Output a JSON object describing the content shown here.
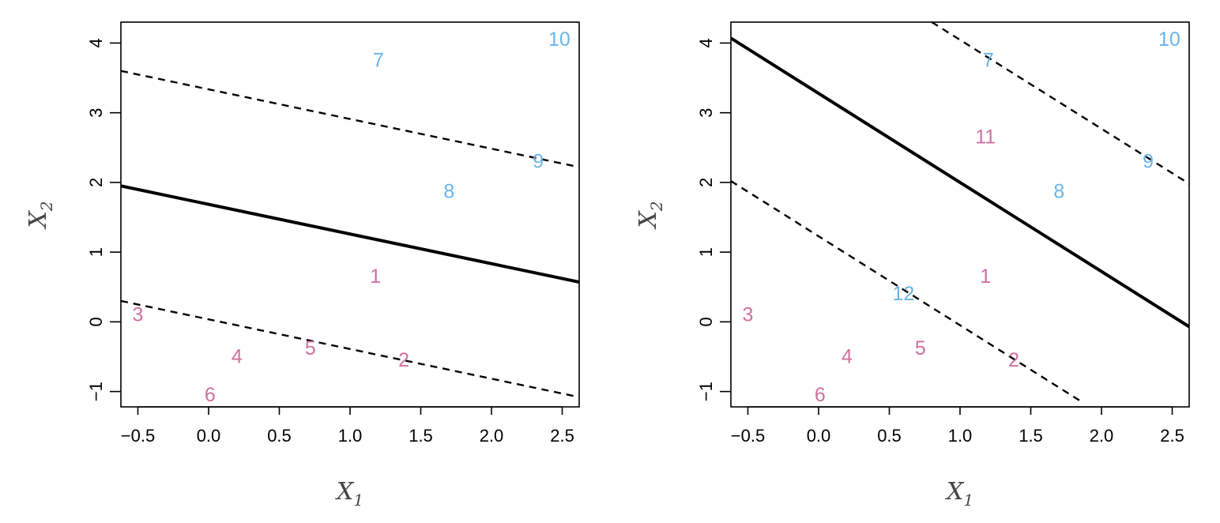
{
  "colors": {
    "class_a": "#d070a0",
    "class_b": "#6ab4e8",
    "line": "#000000"
  },
  "chart_data": [
    {
      "type": "scatter",
      "title": "",
      "xlabel": "X",
      "xlabel_sub": "1",
      "ylabel": "X",
      "ylabel_sub": "2",
      "xlim": [
        -0.62,
        2.62
      ],
      "ylim": [
        -1.22,
        4.3
      ],
      "xticks": [
        -0.5,
        0.0,
        0.5,
        1.0,
        1.5,
        2.0,
        2.5
      ],
      "xtick_labels": [
        "−0.5",
        "0.0",
        "0.5",
        "1.0",
        "1.5",
        "2.0",
        "2.5"
      ],
      "yticks": [
        -1,
        0,
        1,
        2,
        3,
        4
      ],
      "ytick_labels": [
        "−1",
        "0",
        "1",
        "2",
        "3",
        "4"
      ],
      "points": [
        {
          "label": "1",
          "x": 1.18,
          "y": 0.65,
          "class": "class_a"
        },
        {
          "label": "2",
          "x": 1.38,
          "y": -0.55,
          "class": "class_a"
        },
        {
          "label": "3",
          "x": -0.5,
          "y": 0.1,
          "class": "class_a"
        },
        {
          "label": "4",
          "x": 0.2,
          "y": -0.5,
          "class": "class_a"
        },
        {
          "label": "5",
          "x": 0.72,
          "y": -0.38,
          "class": "class_a"
        },
        {
          "label": "6",
          "x": 0.01,
          "y": -1.05,
          "class": "class_a"
        },
        {
          "label": "7",
          "x": 1.2,
          "y": 3.75,
          "class": "class_b"
        },
        {
          "label": "8",
          "x": 1.7,
          "y": 1.87,
          "class": "class_b"
        },
        {
          "label": "9",
          "x": 2.33,
          "y": 2.3,
          "class": "class_b"
        },
        {
          "label": "10",
          "x": 2.48,
          "y": 4.05,
          "class": "class_b"
        }
      ],
      "lines": [
        {
          "style": "solid",
          "x": [
            -0.62,
            2.62
          ],
          "y": [
            1.95,
            0.57
          ]
        },
        {
          "style": "dashed",
          "x": [
            -0.62,
            2.62
          ],
          "y": [
            3.6,
            2.22
          ]
        },
        {
          "style": "dashed",
          "x": [
            -0.62,
            2.62
          ],
          "y": [
            0.3,
            -1.08
          ]
        }
      ]
    },
    {
      "type": "scatter",
      "title": "",
      "xlabel": "X",
      "xlabel_sub": "1",
      "ylabel": "X",
      "ylabel_sub": "2",
      "xlim": [
        -0.62,
        2.62
      ],
      "ylim": [
        -1.22,
        4.3
      ],
      "xticks": [
        -0.5,
        0.0,
        0.5,
        1.0,
        1.5,
        2.0,
        2.5
      ],
      "xtick_labels": [
        "−0.5",
        "0.0",
        "0.5",
        "1.0",
        "1.5",
        "2.0",
        "2.5"
      ],
      "yticks": [
        -1,
        0,
        1,
        2,
        3,
        4
      ],
      "ytick_labels": [
        "−1",
        "0",
        "1",
        "2",
        "3",
        "4"
      ],
      "points": [
        {
          "label": "1",
          "x": 1.18,
          "y": 0.65,
          "class": "class_a"
        },
        {
          "label": "2",
          "x": 1.38,
          "y": -0.55,
          "class": "class_a"
        },
        {
          "label": "3",
          "x": -0.5,
          "y": 0.1,
          "class": "class_a"
        },
        {
          "label": "4",
          "x": 0.2,
          "y": -0.5,
          "class": "class_a"
        },
        {
          "label": "5",
          "x": 0.72,
          "y": -0.38,
          "class": "class_a"
        },
        {
          "label": "6",
          "x": 0.01,
          "y": -1.05,
          "class": "class_a"
        },
        {
          "label": "7",
          "x": 1.2,
          "y": 3.75,
          "class": "class_b"
        },
        {
          "label": "8",
          "x": 1.7,
          "y": 1.87,
          "class": "class_b"
        },
        {
          "label": "9",
          "x": 2.33,
          "y": 2.3,
          "class": "class_b"
        },
        {
          "label": "10",
          "x": 2.48,
          "y": 4.05,
          "class": "class_b"
        },
        {
          "label": "11",
          "x": 1.18,
          "y": 2.65,
          "class": "class_a"
        },
        {
          "label": "12",
          "x": 0.6,
          "y": 0.4,
          "class": "class_b"
        }
      ],
      "lines": [
        {
          "style": "solid",
          "x": [
            -0.62,
            2.62
          ],
          "y": [
            4.07,
            -0.07
          ]
        },
        {
          "style": "dashed",
          "x": [
            0.8,
            2.62
          ],
          "y": [
            4.3,
            1.98
          ]
        },
        {
          "style": "dashed",
          "x": [
            -0.62,
            1.87
          ],
          "y": [
            2.02,
            -1.16
          ]
        }
      ]
    }
  ]
}
